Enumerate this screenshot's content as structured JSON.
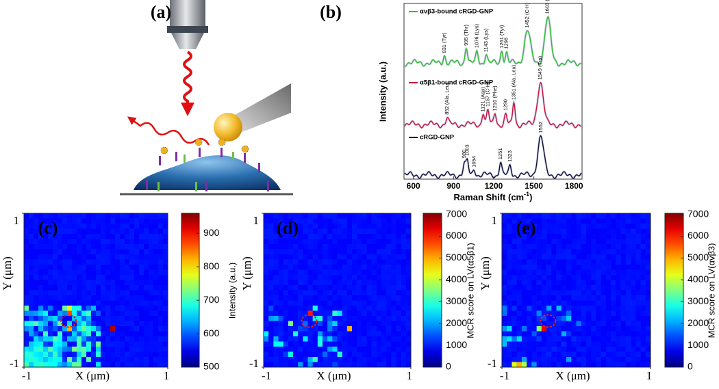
{
  "panels": {
    "a": {
      "label": "(a)"
    },
    "b": {
      "label": "(b)",
      "ylabel": "Intensity (a.u.)",
      "xlabel": "Raman Shift (cm",
      "xlabel_sup": "-1",
      "xlabel_end": ")",
      "xlim": [
        530,
        1860
      ],
      "xticks": [
        600,
        900,
        1200,
        1500,
        1800
      ],
      "series": [
        {
          "name": "αvβ3-bound cRGD-GNP",
          "color": "#2fbf2f",
          "peaks": [
            {
              "value": 831,
              "label": "831 (Tyr)"
            },
            {
              "value": 995,
              "label": "995 (Thr)"
            },
            {
              "value": 1076,
              "label": "1076 (Lys)"
            },
            {
              "value": 1143,
              "label": "1143 (Lys)"
            },
            {
              "value": 1261,
              "label": "1261 (Tyr)"
            },
            1296,
            {
              "value": 1452,
              "label": "1452 (C-H)"
            },
            {
              "value": 1603,
              "label": "1603 (Phe)"
            }
          ]
        },
        {
          "name": "α5β1-bound cRGD-GNP",
          "color": "#c8143c",
          "peaks": [
            {
              "value": 852,
              "label": "852 (Ala, Leu)"
            },
            {
              "value": 1121,
              "label": "1121 (Asp)"
            },
            {
              "value": 1157,
              "label": "1157 (C-H)"
            },
            {
              "value": 1210,
              "label": "1210 (Phe)"
            },
            1290,
            {
              "value": 1351,
              "label": "1351 (Ala, Leu)"
            },
            {
              "value": 1549,
              "label": "1549 (Trp)"
            }
          ]
        },
        {
          "name": "cRGD-GNP",
          "color": "#101030",
          "peaks": [
            980,
            1003,
            1054,
            1251,
            1323,
            1552
          ]
        }
      ]
    },
    "c": {
      "label": "(c)",
      "xlabel": "X (μm)",
      "ylabel": "Y (μm)",
      "xlim": [
        -1,
        1
      ],
      "xticks": [
        -1,
        1
      ],
      "ylim": [
        -1,
        1
      ],
      "yticks": [
        -1,
        1
      ],
      "cbar_label": "Intensity (a.u.)",
      "clim": [
        500,
        960
      ],
      "cticks": [
        500,
        600,
        700,
        800,
        900
      ]
    },
    "d": {
      "label": "(d)",
      "xlabel": "X (μm)",
      "ylabel": "Y (μm)",
      "xlim": [
        -1,
        1
      ],
      "xticks": [
        -1,
        1
      ],
      "ylim": [
        -1,
        1
      ],
      "yticks": [
        -1,
        1
      ],
      "cbar_label": "MCR score on LV(α5β1)",
      "clim": [
        0,
        7050
      ],
      "cticks": [
        0,
        1000,
        2000,
        3000,
        4000,
        5000,
        6000,
        7000
      ]
    },
    "e": {
      "label": "(e)",
      "xlabel": "X (μm)",
      "ylabel": "Y (μm)",
      "xlim": [
        -1,
        1
      ],
      "xticks": [
        -1,
        1
      ],
      "ylim": [
        -1,
        1
      ],
      "yticks": [
        -1,
        1
      ],
      "cbar_label": "MCR score on LV(αvβ3)",
      "clim": [
        0,
        7050
      ],
      "cticks": [
        0,
        1000,
        2000,
        3000,
        4000,
        5000,
        6000,
        7000
      ]
    }
  }
}
